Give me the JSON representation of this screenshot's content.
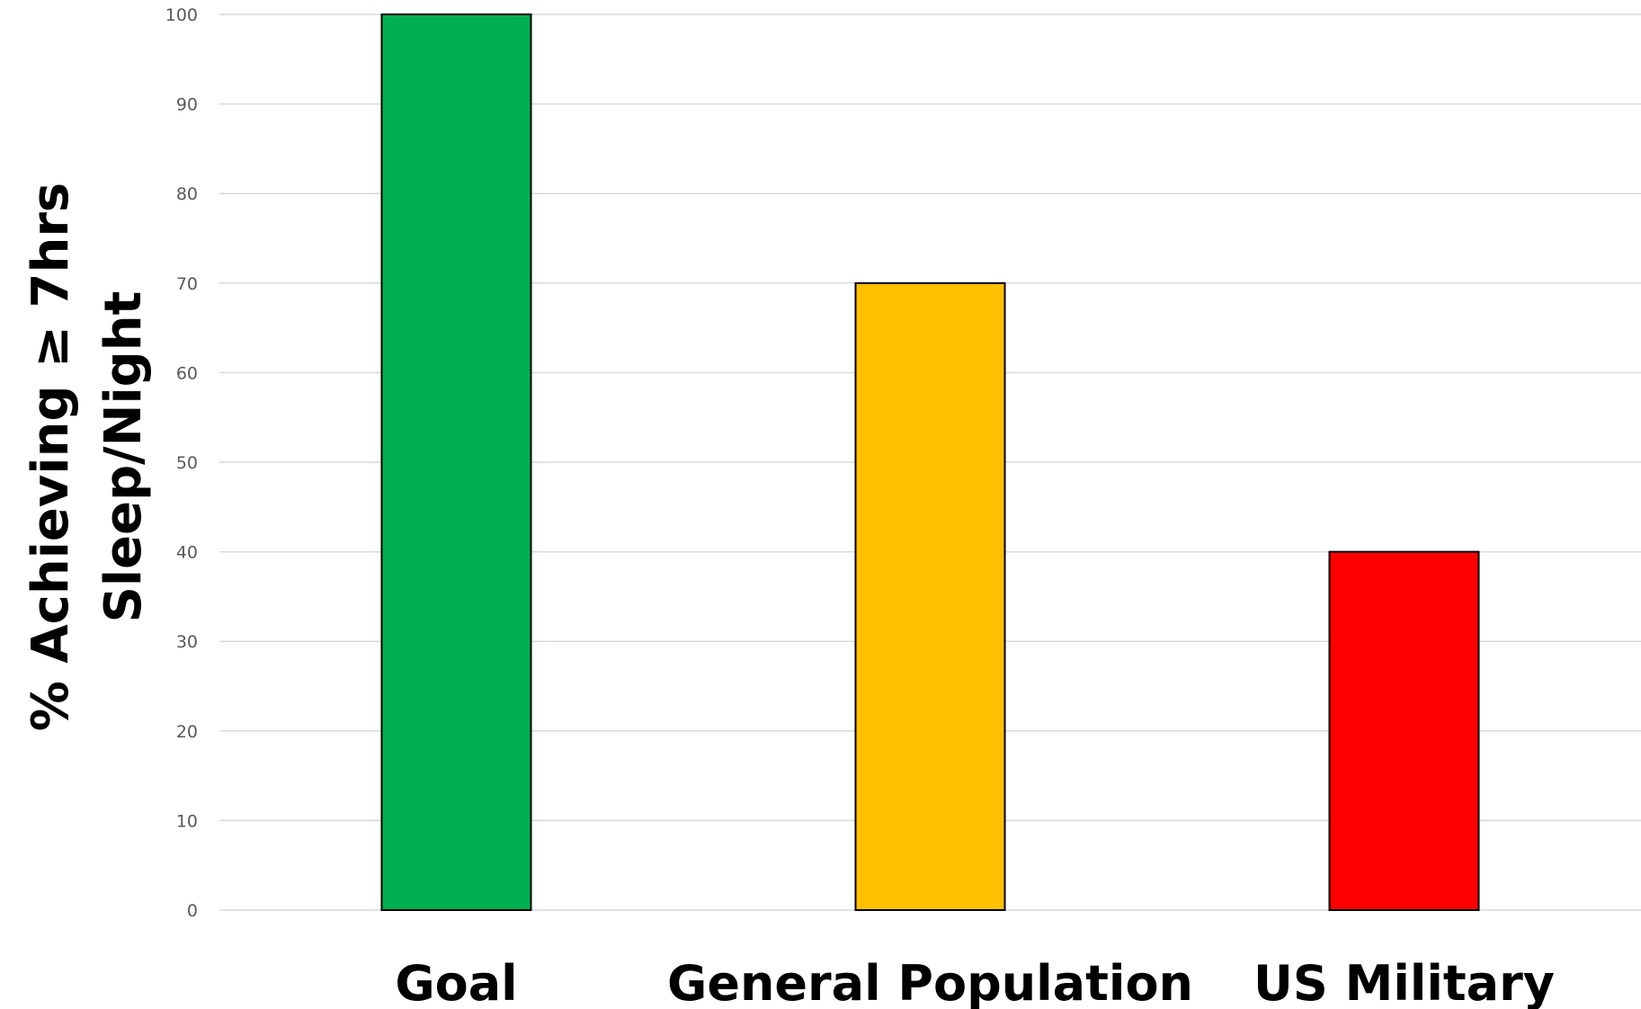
{
  "chart_data": {
    "type": "bar",
    "categories": [
      "Goal",
      "General Population",
      "US Military"
    ],
    "values": [
      100,
      70,
      40
    ],
    "colors": [
      "#00b050",
      "#ffc000",
      "#ff0000"
    ],
    "ylabel_lines": [
      "% Achieving ≥ 7hrs",
      "Sleep/Night"
    ],
    "ylim": [
      0,
      100
    ],
    "yticks": [
      0,
      10,
      20,
      30,
      40,
      50,
      60,
      70,
      80,
      90,
      100
    ],
    "grid": true,
    "legend": "none",
    "gridline_color": "#d9d9d9"
  }
}
